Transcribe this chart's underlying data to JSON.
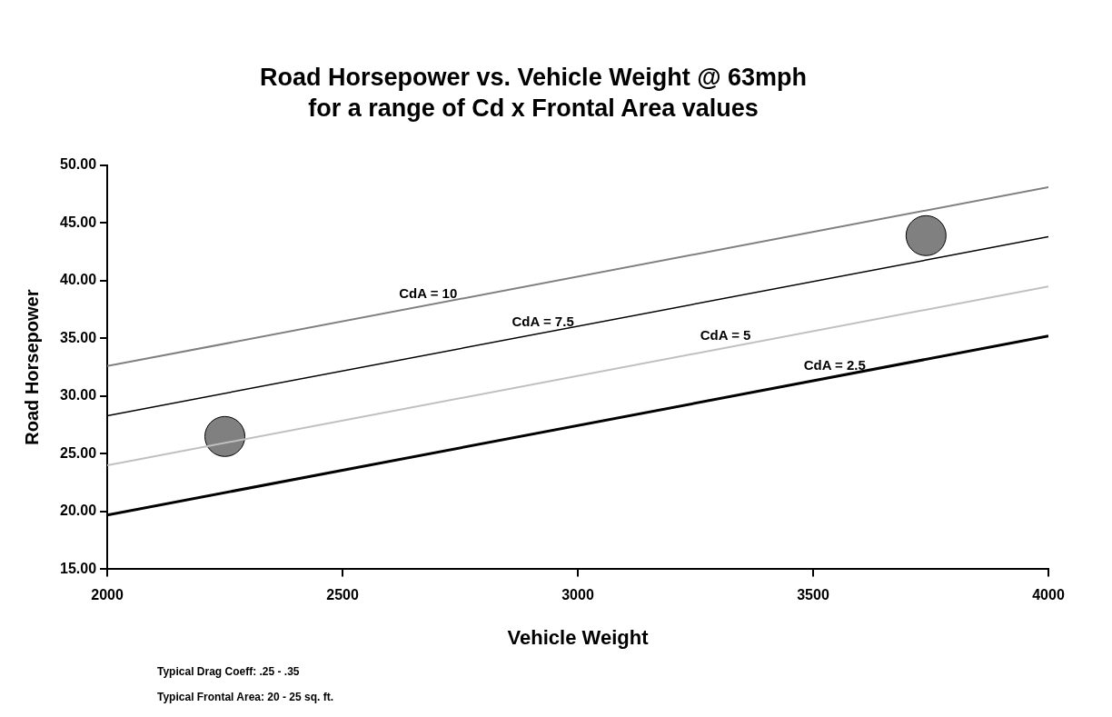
{
  "chart_data": {
    "type": "line",
    "title": "Road Horsepower vs. Vehicle Weight @ 63mph",
    "subtitle": "for a range of Cd x Frontal Area values",
    "xlabel": "Vehicle Weight",
    "ylabel": "Road Horsepower",
    "xlim": [
      2000,
      4000
    ],
    "xticks": [
      2000,
      2500,
      3000,
      3500,
      4000
    ],
    "ylim": [
      15,
      50
    ],
    "yticks": [
      {
        "value": 15,
        "label": "15.00"
      },
      {
        "value": 20,
        "label": "20.00"
      },
      {
        "value": 25,
        "label": "25.00"
      },
      {
        "value": 30,
        "label": "30.00"
      },
      {
        "value": 35,
        "label": "35.00"
      },
      {
        "value": 40,
        "label": "40.00"
      },
      {
        "value": 45,
        "label": "45.00"
      },
      {
        "value": 50,
        "label": "50.00"
      }
    ],
    "grid": false,
    "legend": false,
    "marker": "none",
    "series": [
      {
        "name": "CdA = 10",
        "color": "#808080",
        "x": [
          2000,
          4000
        ],
        "values": [
          32.6,
          48.1
        ]
      },
      {
        "name": "CdA = 7.5",
        "color": "#000000",
        "x": [
          2000,
          4000
        ],
        "values": [
          28.3,
          43.8
        ]
      },
      {
        "name": "CdA = 5",
        "color": "#c0c0c0",
        "x": [
          2000,
          4000
        ],
        "values": [
          24.0,
          39.5
        ]
      },
      {
        "name": "CdA = 2.5",
        "color": "#000000",
        "x": [
          2000,
          4000
        ],
        "values": [
          19.7,
          35.2
        ]
      },
      {
        "type": "scatter",
        "color": "#808080",
        "marker": "circle",
        "x": [
          2250,
          3740
        ],
        "values": [
          26.5,
          43.9
        ]
      }
    ],
    "annotations": [
      "Typical Drag Coeff:  .25 - .35",
      "Typical Frontal Area: 20 - 25 sq. ft."
    ]
  }
}
